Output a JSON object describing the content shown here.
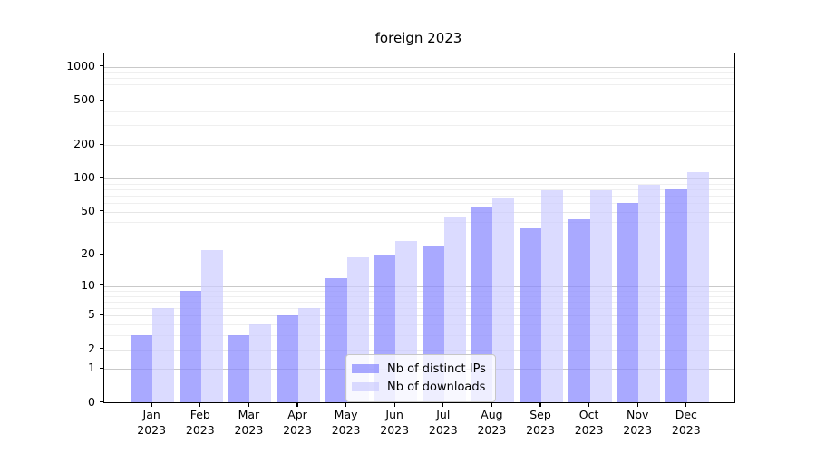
{
  "title": "foreign 2023",
  "legend": {
    "items": [
      {
        "label": "Nb of distinct IPs",
        "color": "#8888ff",
        "alpha": 0.72
      },
      {
        "label": "Nb of downloads",
        "color": "#ccccff",
        "alpha": 0.7
      }
    ],
    "background": "#ffffff",
    "border_color": "#c7c7c7"
  },
  "axes": {
    "spine_color": "#000000",
    "text_color": "#000000",
    "grid_decade_color": "#c9c9c9",
    "grid_mid_color": "#e6e6e6",
    "grid_minor_color": "#efefef"
  },
  "chart_data": {
    "type": "bar",
    "title": "foreign 2023",
    "categories": [
      "Jan 2023",
      "Feb 2023",
      "Mar 2023",
      "Apr 2023",
      "May 2023",
      "Jun 2023",
      "Jul 2023",
      "Aug 2023",
      "Sep 2023",
      "Oct 2023",
      "Nov 2023",
      "Dec 2023"
    ],
    "series": [
      {
        "name": "Nb of distinct IPs",
        "values": [
          3,
          9,
          3,
          5,
          12,
          20,
          24,
          55,
          35,
          43,
          60,
          80
        ]
      },
      {
        "name": "Nb of downloads",
        "values": [
          6,
          22,
          4,
          6,
          19,
          27,
          44,
          66,
          78,
          78,
          88,
          115
        ]
      }
    ],
    "xlabel": "",
    "ylabel": "",
    "y_scale": "log(value+1)",
    "y_ticks": [
      0,
      1,
      2,
      5,
      10,
      20,
      50,
      100,
      200,
      500,
      1000
    ],
    "ylim": [
      0,
      1310
    ],
    "grid": true,
    "legend_position": "lower center"
  }
}
